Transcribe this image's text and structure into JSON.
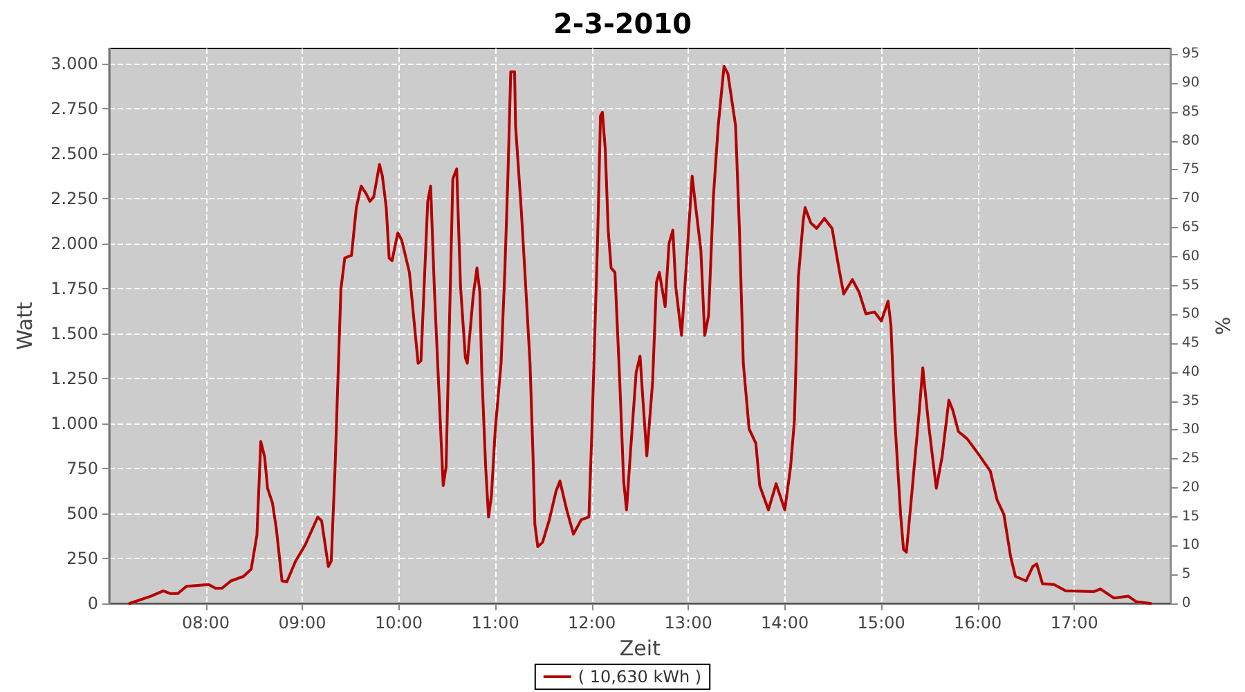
{
  "chart_data": {
    "type": "line",
    "title": "2-3-2010",
    "xlabel": "Zeit",
    "ylabel": "Watt",
    "y2label": "%",
    "xlim": [
      7,
      18
    ],
    "xticks": [
      {
        "value": 8,
        "label": "08:00"
      },
      {
        "value": 9,
        "label": "09:00"
      },
      {
        "value": 10,
        "label": "10:00"
      },
      {
        "value": 11,
        "label": "11:00"
      },
      {
        "value": 12,
        "label": "12:00"
      },
      {
        "value": 13,
        "label": "13:00"
      },
      {
        "value": 14,
        "label": "14:00"
      },
      {
        "value": 15,
        "label": "15:00"
      },
      {
        "value": 16,
        "label": "16:00"
      },
      {
        "value": 17,
        "label": "17:00"
      }
    ],
    "ylim": [
      0,
      3085
    ],
    "yticks": [
      0,
      {
        "value": 250,
        "label": "250"
      },
      {
        "value": 500,
        "label": "500"
      },
      {
        "value": 750,
        "label": "750"
      },
      {
        "value": 1000,
        "label": "1.000"
      },
      {
        "value": 1250,
        "label": "1.250"
      },
      {
        "value": 1500,
        "label": "1.500"
      },
      {
        "value": 1750,
        "label": "1.750"
      },
      {
        "value": 2000,
        "label": "2.000"
      },
      {
        "value": 2250,
        "label": "2.250"
      },
      {
        "value": 2500,
        "label": "2.500"
      },
      {
        "value": 2750,
        "label": "2.750"
      },
      {
        "value": 3000,
        "label": "3.000"
      }
    ],
    "y2lim": [
      0,
      96
    ],
    "y2ticks": [
      0,
      5,
      10,
      15,
      20,
      25,
      30,
      35,
      40,
      45,
      50,
      55,
      60,
      65,
      70,
      75,
      80,
      85,
      90,
      95
    ],
    "grid": true,
    "legend": "bottom",
    "marker": "none",
    "line_style": "solid",
    "series": [
      {
        "name": "( 10,630 kWh )",
        "color": "#b40000",
        "x": [
          7.21,
          7.43,
          7.56,
          7.63,
          7.71,
          7.8,
          8.03,
          8.1,
          8.17,
          8.26,
          8.39,
          8.47,
          8.53,
          8.57,
          8.61,
          8.64,
          8.69,
          8.73,
          8.79,
          8.84,
          8.93,
          9.03,
          9.16,
          9.2,
          9.27,
          9.3,
          9.34,
          9.37,
          9.4,
          9.44,
          9.51,
          9.56,
          9.61,
          9.66,
          9.7,
          9.74,
          9.8,
          9.83,
          9.87,
          9.9,
          9.93,
          9.99,
          10.03,
          10.11,
          10.2,
          10.23,
          10.3,
          10.33,
          10.37,
          10.44,
          10.46,
          10.49,
          10.56,
          10.6,
          10.64,
          10.69,
          10.71,
          10.77,
          10.81,
          10.84,
          10.86,
          10.9,
          10.93,
          10.96,
          11,
          11.06,
          11.1,
          11.13,
          11.16,
          11.2,
          11.21,
          11.27,
          11.31,
          11.36,
          11.39,
          11.41,
          11.44,
          11.49,
          11.56,
          11.63,
          11.67,
          11.74,
          11.81,
          11.89,
          11.97,
          12,
          12.06,
          12.09,
          12.11,
          12.14,
          12.17,
          12.2,
          12.24,
          12.29,
          12.33,
          12.36,
          12.4,
          12.46,
          12.5,
          12.53,
          12.57,
          12.63,
          12.67,
          12.7,
          12.76,
          12.8,
          12.84,
          12.87,
          12.93,
          12.99,
          13.04,
          13.07,
          13.13,
          13.17,
          13.21,
          13.26,
          13.31,
          13.37,
          13.41,
          13.49,
          13.53,
          13.57,
          13.63,
          13.7,
          13.74,
          13.83,
          13.91,
          14,
          14.06,
          14.1,
          14.14,
          14.19,
          14.21,
          14.27,
          14.33,
          14.41,
          14.49,
          14.56,
          14.61,
          14.7,
          14.77,
          14.84,
          14.93,
          15,
          15.07,
          15.1,
          15.14,
          15.2,
          15.23,
          15.26,
          15.31,
          15.39,
          15.43,
          15.49,
          15.57,
          15.63,
          15.7,
          15.74,
          15.8,
          15.89,
          16,
          16.13,
          16.2,
          16.27,
          16.34,
          16.39,
          16.5,
          16.57,
          16.61,
          16.67,
          16.79,
          16.91,
          17.2,
          17.27,
          17.41,
          17.56,
          17.64,
          17.79
        ],
        "values": [
          0,
          40,
          70,
          55,
          55,
          95,
          105,
          85,
          85,
          125,
          150,
          190,
          380,
          900,
          815,
          640,
          560,
          420,
          125,
          120,
          235,
          325,
          480,
          460,
          205,
          235,
          760,
          1255,
          1745,
          1920,
          1935,
          2200,
          2320,
          2280,
          2235,
          2260,
          2440,
          2375,
          2200,
          1920,
          1905,
          2060,
          2020,
          1840,
          1335,
          1350,
          2235,
          2320,
          1730,
          890,
          655,
          760,
          2360,
          2415,
          1760,
          1365,
          1335,
          1705,
          1865,
          1730,
          1285,
          760,
          480,
          600,
          970,
          1335,
          1865,
          2360,
          2955,
          2955,
          2655,
          2180,
          1810,
          1335,
          835,
          440,
          315,
          340,
          465,
          625,
          680,
          520,
          385,
          465,
          480,
          940,
          2020,
          2710,
          2730,
          2520,
          2075,
          1865,
          1840,
          1230,
          680,
          520,
          835,
          1285,
          1375,
          1130,
          820,
          1230,
          1785,
          1840,
          1650,
          2000,
          2075,
          1760,
          1490,
          1965,
          2375,
          2235,
          1965,
          1490,
          1600,
          2260,
          2655,
          2985,
          2945,
          2655,
          2075,
          1335,
          970,
          890,
          655,
          520,
          665,
          520,
          760,
          1020,
          1810,
          2125,
          2200,
          2115,
          2085,
          2140,
          2085,
          1865,
          1720,
          1800,
          1730,
          1610,
          1620,
          1570,
          1680,
          1545,
          1020,
          495,
          300,
          285,
          575,
          1050,
          1310,
          995,
          640,
          815,
          1130,
          1075,
          955,
          915,
          835,
          735,
          575,
          495,
          260,
          150,
          125,
          205,
          220,
          110,
          105,
          70,
          65,
          80,
          30,
          40,
          10,
          0
        ]
      }
    ]
  }
}
